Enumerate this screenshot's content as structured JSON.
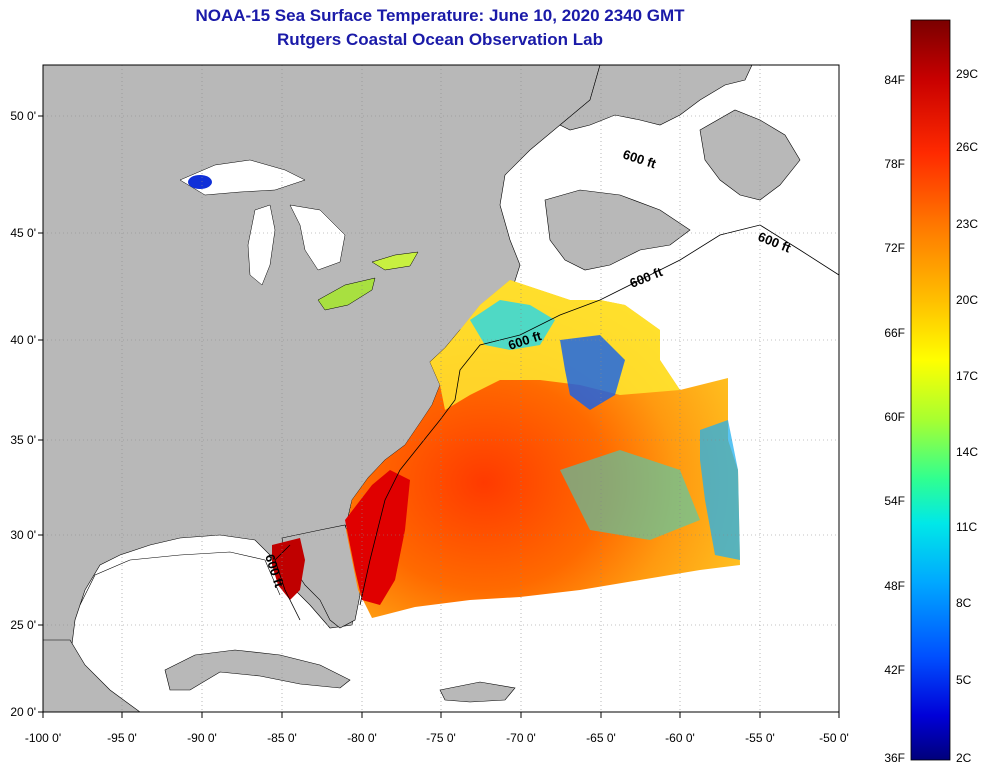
{
  "title": {
    "line1": "NOAA-15 Sea Surface Temperature:  June 10, 2020 2340 GMT",
    "line2": "Rutgers Coastal Ocean Observation Lab"
  },
  "axes": {
    "x_ticks": [
      "-100 0'",
      "-95 0'",
      "-90 0'",
      "-85 0'",
      "-80 0'",
      "-75 0'",
      "-70 0'",
      "-65 0'",
      "-60 0'",
      "-55 0'",
      "-50 0'"
    ],
    "y_ticks": [
      "50 0'",
      "45 0'",
      "40 0'",
      "35 0'",
      "30 0'",
      "25 0'",
      "20 0'"
    ]
  },
  "contour_labels": [
    "600 ft",
    "600 ft",
    "600 ft",
    "600 ft",
    "600 ft"
  ],
  "colorbar": {
    "fahrenheit": [
      "84F",
      "78F",
      "72F",
      "66F",
      "60F",
      "54F",
      "48F",
      "42F",
      "36F"
    ],
    "celsius": [
      "29C",
      "26C",
      "23C",
      "20C",
      "17C",
      "14C",
      "11C",
      "8C",
      "5C",
      "2C"
    ],
    "colors": [
      "#7a0000",
      "#c80000",
      "#ff2a00",
      "#ff7a00",
      "#ffc000",
      "#ffff00",
      "#a8ff30",
      "#30ff90",
      "#00e8e8",
      "#00a8ff",
      "#0050ff",
      "#0000d8",
      "#00007a"
    ]
  },
  "colors": {
    "land": "#b8b8b8",
    "ocean_nodata": "#ffffff",
    "title": "#1a1aa8"
  }
}
